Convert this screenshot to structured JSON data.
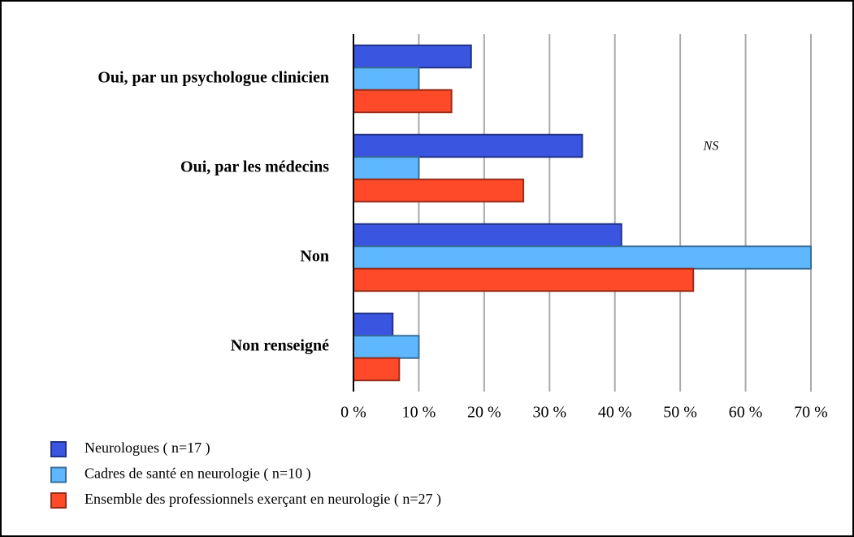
{
  "chart_data": {
    "type": "bar",
    "orientation": "horizontal",
    "categories": [
      "Oui, par un psychologue clinicien",
      "Oui, par les médecins",
      "Non",
      "Non renseigné"
    ],
    "series": [
      {
        "name": "Neurologues ( n=17 )",
        "color": "#3a55e0",
        "values": [
          18,
          35,
          41,
          6
        ]
      },
      {
        "name": "Cadres de santé en neurologie ( n=10 )",
        "color": "#5fb8ff",
        "values": [
          10,
          10,
          70,
          10
        ]
      },
      {
        "name": "Ensemble des professionnels exerçant en neurologie ( n=27 )",
        "color": "#ff4a2a",
        "values": [
          15,
          26,
          52,
          7
        ]
      }
    ],
    "xlim": [
      0,
      70
    ],
    "xticks": [
      {
        "value": 0,
        "label": "0 %"
      },
      {
        "value": 10,
        "label": "10 %"
      },
      {
        "value": 20,
        "label": "20 %"
      },
      {
        "value": 30,
        "label": "30 %"
      },
      {
        "value": 40,
        "label": "40 %"
      },
      {
        "value": 50,
        "label": "50 %"
      },
      {
        "value": 60,
        "label": "60 %"
      },
      {
        "value": 70,
        "label": "70 %"
      }
    ],
    "grid": true,
    "annotation": "NS"
  }
}
